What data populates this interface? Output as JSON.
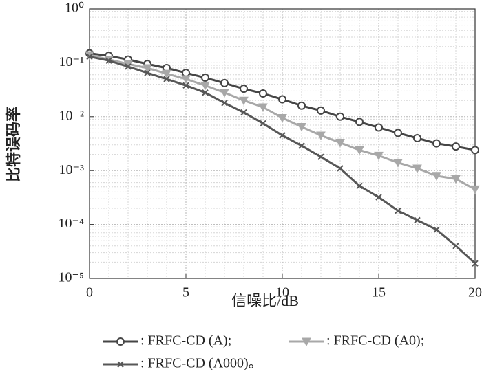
{
  "chart_data": {
    "type": "line",
    "x_label": "信噪比/dB",
    "y_label": "比特误码率",
    "x": [
      0,
      1,
      2,
      3,
      4,
      5,
      6,
      7,
      8,
      9,
      10,
      11,
      12,
      13,
      14,
      15,
      16,
      17,
      18,
      19,
      20
    ],
    "series": [
      {
        "name": ": FRFC-CD (A);",
        "color": "#454545",
        "marker": "circle",
        "values": [
          0.15,
          0.135,
          0.115,
          0.095,
          0.08,
          0.065,
          0.053,
          0.042,
          0.033,
          0.027,
          0.021,
          0.016,
          0.013,
          0.01,
          0.008,
          0.0063,
          0.005,
          0.004,
          0.0032,
          0.0028,
          0.0024
        ]
      },
      {
        "name": ": FRFC-CD (A0);",
        "color": "#a8a8a8",
        "marker": "triangle-down",
        "values": [
          0.14,
          0.115,
          0.095,
          0.08,
          0.063,
          0.05,
          0.038,
          0.028,
          0.02,
          0.015,
          0.0095,
          0.0065,
          0.0045,
          0.0033,
          0.0024,
          0.0019,
          0.0014,
          0.0011,
          0.0008,
          0.0007,
          0.00045
        ]
      },
      {
        "name": ": FRFC-CD (A000)。",
        "color": "#575757",
        "marker": "x",
        "values": [
          0.13,
          0.11,
          0.085,
          0.065,
          0.05,
          0.038,
          0.028,
          0.018,
          0.012,
          0.0075,
          0.0045,
          0.0029,
          0.0018,
          0.0011,
          0.00052,
          0.00032,
          0.00018,
          0.00012,
          8e-05,
          4e-05,
          1.9e-05
        ]
      }
    ],
    "xlim": [
      0,
      20
    ],
    "xticks": [
      0,
      5,
      10,
      15,
      20
    ],
    "ylim": [
      1e-05,
      1
    ],
    "log_y": true,
    "yticks": [
      {
        "value": 1e-05,
        "label": "10⁻⁵"
      },
      {
        "value": 0.0001,
        "label": "10⁻⁴"
      },
      {
        "value": 0.001,
        "label": "10⁻³"
      },
      {
        "value": 0.01,
        "label": "10⁻²"
      },
      {
        "value": 0.1,
        "label": "10⁻¹"
      },
      {
        "value": 1,
        "label": "10⁰"
      }
    ],
    "grid": true
  }
}
